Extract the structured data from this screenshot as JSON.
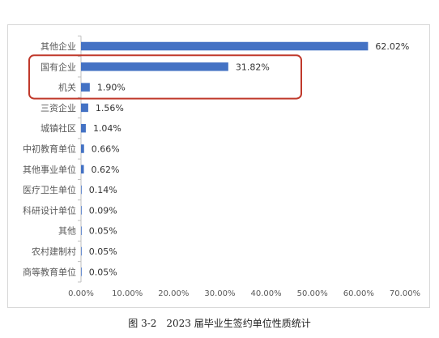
{
  "caption": "图 3-2　2023 届毕业生签约单位性质统计",
  "chart_data": {
    "type": "bar",
    "orientation": "horizontal",
    "categories": [
      "其他企业",
      "国有企业",
      "机关",
      "三资企业",
      "城镇社区",
      "中初教育单位",
      "其他事业单位",
      "医疗卫生单位",
      "科研设计单位",
      "其他",
      "农村建制村",
      "商等教育单位"
    ],
    "values": [
      62.02,
      31.82,
      1.9,
      1.56,
      1.04,
      0.66,
      0.62,
      0.14,
      0.09,
      0.05,
      0.05,
      0.05
    ],
    "value_labels": [
      "62.02%",
      "31.82%",
      "1.90%",
      "1.56%",
      "1.04%",
      "0.66%",
      "0.62%",
      "0.14%",
      "0.09%",
      "0.05%",
      "0.05%",
      "0.05%"
    ],
    "xlim": [
      0,
      70
    ],
    "xticks": [
      "0.00%",
      "10.00%",
      "20.00%",
      "30.00%",
      "40.00%",
      "50.00%",
      "60.00%",
      "70.00%"
    ],
    "grid": false,
    "legend": "none",
    "bar_color": "#4472c4",
    "highlight": {
      "categories": [
        "国有企业",
        "机关"
      ],
      "color": "#c0392b"
    }
  }
}
